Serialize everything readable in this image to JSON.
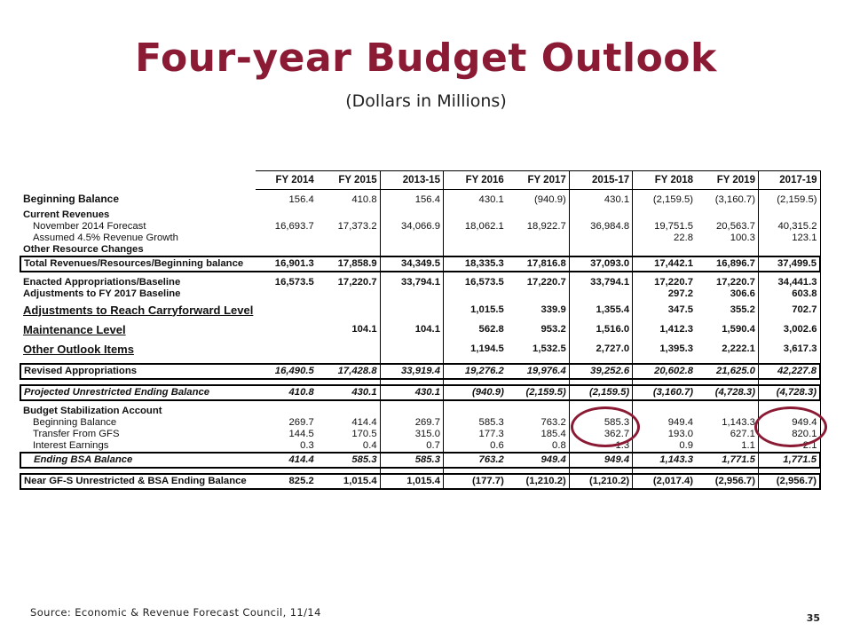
{
  "title": "Four-year Budget Outlook",
  "subtitle": "(Dollars in Millions)",
  "columns": [
    "FY 2014",
    "FY 2015",
    "2013-15",
    "FY 2016",
    "FY 2017",
    "2015-17",
    "FY 2018",
    "FY 2019",
    "2017-19"
  ],
  "rows": {
    "beginning_balance": {
      "label": "Beginning Balance",
      "values": [
        "156.4",
        "410.8",
        "156.4",
        "430.1",
        "(940.9)",
        "430.1",
        "(2,159.5)",
        "(3,160.7)",
        "(2,159.5)"
      ]
    },
    "current_revenues": {
      "label": "Current Revenues"
    },
    "nov_forecast": {
      "label": "November 2014 Forecast",
      "values": [
        "16,693.7",
        "17,373.2",
        "34,066.9",
        "18,062.1",
        "18,922.7",
        "36,984.8",
        "19,751.5",
        "20,563.7",
        "40,315.2"
      ]
    },
    "assumed_growth": {
      "label": "Assumed 4.5% Revenue Growth",
      "values": [
        "",
        "",
        "",
        "",
        "",
        "",
        "22.8",
        "100.3",
        "123.1"
      ]
    },
    "other_resource": {
      "label": "Other Resource Changes"
    },
    "total_revenues": {
      "label": "Total Revenues/Resources/Beginning balance",
      "values": [
        "16,901.3",
        "17,858.9",
        "34,349.5",
        "18,335.3",
        "17,816.8",
        "37,093.0",
        "17,442.1",
        "16,896.7",
        "37,499.5"
      ]
    },
    "enacted": {
      "label": "Enacted Appropriations/Baseline",
      "values": [
        "16,573.5",
        "17,220.7",
        "33,794.1",
        "16,573.5",
        "17,220.7",
        "33,794.1",
        "17,220.7",
        "17,220.7",
        "34,441.3"
      ]
    },
    "adjustments": {
      "label": "Adjustments to FY 2017 Baseline",
      "values": [
        "",
        "",
        "",
        "",
        "",
        "",
        "297.2",
        "306.6",
        "603.8"
      ]
    },
    "carryforward": {
      "label": "Adjustments to Reach Carryforward Level",
      "values": [
        "",
        "",
        "",
        "1,015.5",
        "339.9",
        "1,355.4",
        "347.5",
        "355.2",
        "702.7"
      ]
    },
    "maintenance": {
      "label": "Maintenance Level",
      "values": [
        "",
        "104.1",
        "104.1",
        "562.8",
        "953.2",
        "1,516.0",
        "1,412.3",
        "1,590.4",
        "3,002.6"
      ]
    },
    "other_outlook": {
      "label": "Other Outlook Items",
      "values": [
        "",
        "",
        "",
        "1,194.5",
        "1,532.5",
        "2,727.0",
        "1,395.3",
        "2,222.1",
        "3,617.3"
      ]
    },
    "revised": {
      "label": "Revised Appropriations",
      "values": [
        "16,490.5",
        "17,428.8",
        "33,919.4",
        "19,276.2",
        "19,976.4",
        "39,252.6",
        "20,602.8",
        "21,625.0",
        "42,227.8"
      ]
    },
    "projected": {
      "label": "Projected Unrestricted Ending Balance",
      "values": [
        "410.8",
        "430.1",
        "430.1",
        "(940.9)",
        "(2,159.5)",
        "(2,159.5)",
        "(3,160.7)",
        "(4,728.3)",
        "(4,728.3)"
      ]
    },
    "bsa": {
      "label": "Budget Stabilization Account"
    },
    "bsa_beginning": {
      "label": "Beginning Balance",
      "values": [
        "269.7",
        "414.4",
        "269.7",
        "585.3",
        "763.2",
        "585.3",
        "949.4",
        "1,143.3",
        "949.4"
      ]
    },
    "transfer": {
      "label": "Transfer From GFS",
      "values": [
        "144.5",
        "170.5",
        "315.0",
        "177.3",
        "185.4",
        "362.7",
        "193.0",
        "627.1",
        "820.1"
      ]
    },
    "interest": {
      "label": "Interest Earnings",
      "values": [
        "0.3",
        "0.4",
        "0.7",
        "0.6",
        "0.8",
        "1.3",
        "0.9",
        "1.1",
        "2.1"
      ]
    },
    "ending_bsa": {
      "label": "Ending BSA Balance",
      "values": [
        "414.4",
        "585.3",
        "585.3",
        "763.2",
        "949.4",
        "949.4",
        "1,143.3",
        "1,771.5",
        "1,771.5"
      ]
    },
    "near_gfs": {
      "label": "Near GF-S Unrestricted & BSA Ending Balance",
      "values": [
        "825.2",
        "1,015.4",
        "1,015.4",
        "(177.7)",
        "(1,210.2)",
        "(1,210.2)",
        "(2,017.4)",
        "(2,956.7)",
        "(2,956.7)"
      ]
    }
  },
  "source": "Source: Economic & Revenue Forecast Council, 11/14",
  "page_number": "35",
  "highlight_color": "#8b1a34"
}
